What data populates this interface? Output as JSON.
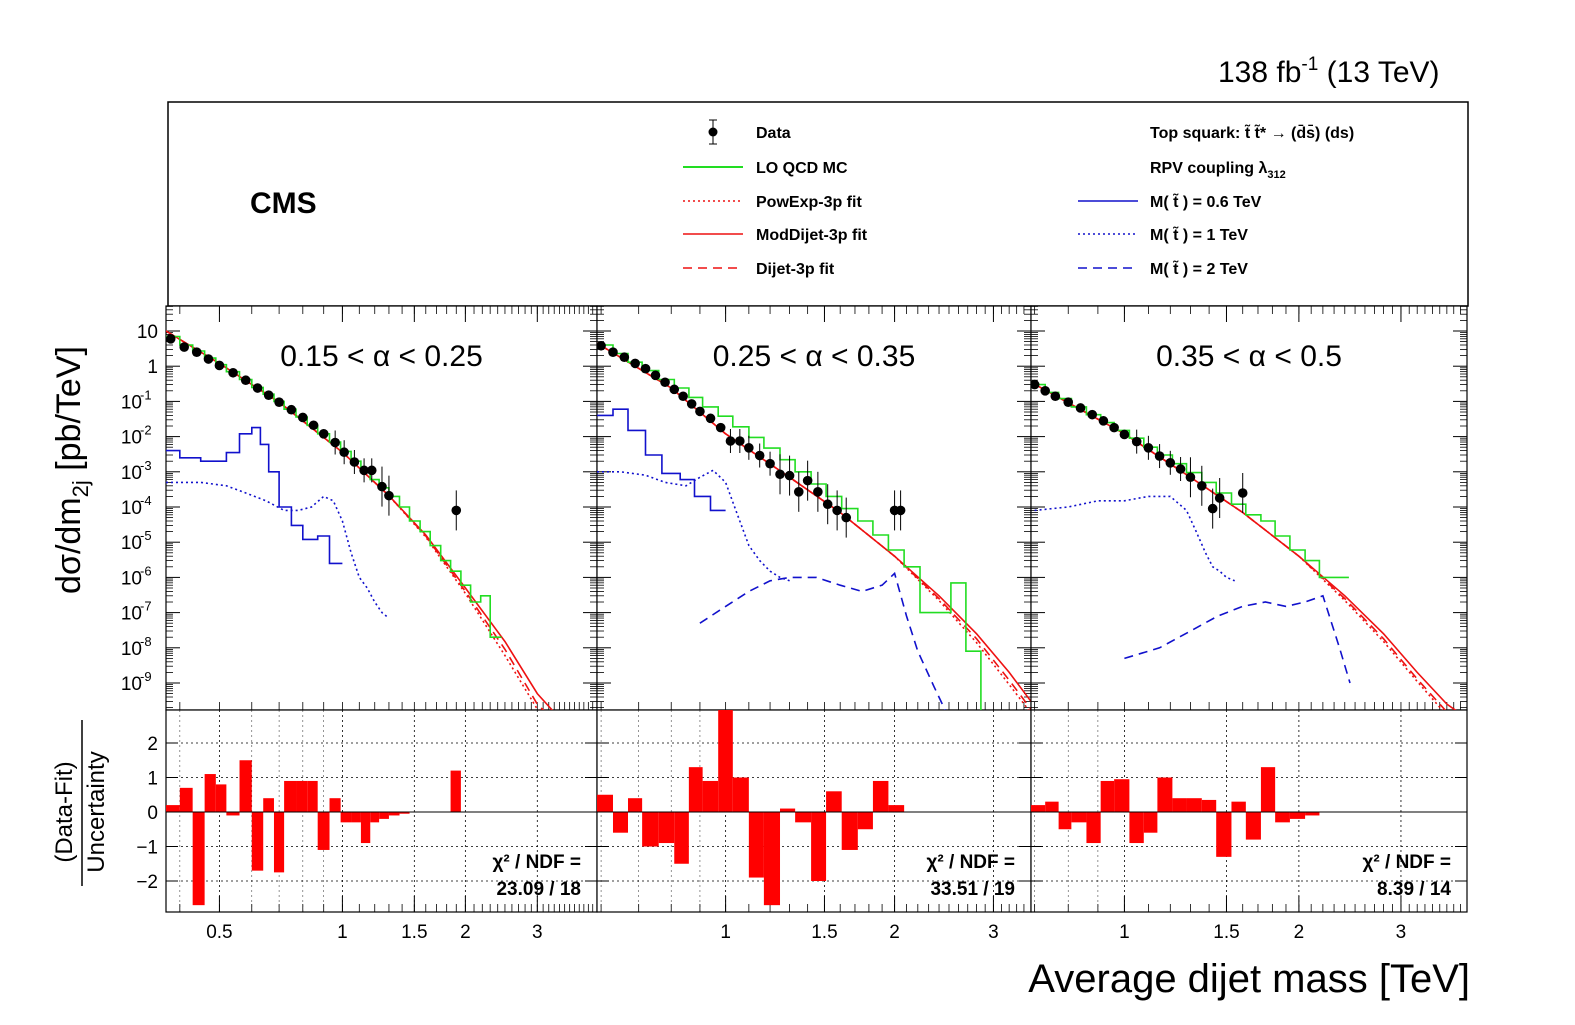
{
  "header": {
    "lumi_text": "138 fb",
    "lumi_sup": "-1",
    "lumi_energy": "(13 TeV)",
    "cms_label": "CMS"
  },
  "legend": {
    "data": "Data",
    "lo_qcd_mc": "LO QCD MC",
    "powexp": "PowExp-3p fit",
    "moddijet": "ModDijet-3p fit",
    "dijet": "Dijet-3p fit",
    "signal_header_1": "Top squark: t̃ t̃* → (d̄s̄) (ds)",
    "signal_header_2": "RPV coupling λ",
    "signal_header_2_sub": "312",
    "sig_06": "M( t̃ ) = 0.6 TeV",
    "sig_1": "M( t̃ ) = 1 TeV",
    "sig_2": "M( t̃ ) = 2 TeV"
  },
  "axes": {
    "y_top_label": "dσ/dm",
    "y_top_label_sub": "2j",
    "y_top_label_unit": " [pb/TeV]",
    "y_bottom_num": "(Data-Fit)",
    "y_bottom_den": "Uncertainty",
    "x_label": "Average dijet mass [TeV]"
  },
  "colors": {
    "data": "#000000",
    "qcd_mc": "#22dd22",
    "fit": "#ee1111",
    "signal": "#1111cc",
    "residual": "#ff0000"
  },
  "chart_data": [
    {
      "type": "line",
      "title": "0.15 < α < 0.25",
      "xlabel": "Average dijet mass [TeV]",
      "ylabel": "dσ/dm2j [pb/TeV]",
      "x_scale": "log",
      "y_scale": "log",
      "xlim": [
        0.37,
        4.2
      ],
      "ylim": [
        1e-10,
        30
      ],
      "x_ticks": [
        0.5,
        1,
        1.5,
        2,
        3
      ],
      "y_ticks": [
        "10",
        "1",
        "10^-1",
        "10^-2",
        "10^-3",
        "10^-4",
        "10^-5",
        "10^-6",
        "10^-7",
        "10^-8",
        "10^-9"
      ],
      "data_points": {
        "x": [
          0.38,
          0.41,
          0.44,
          0.47,
          0.5,
          0.54,
          0.58,
          0.62,
          0.66,
          0.7,
          0.75,
          0.8,
          0.85,
          0.9,
          0.96,
          1.01,
          1.07,
          1.13,
          1.18,
          1.25,
          1.3,
          1.9
        ],
        "y": [
          6,
          3.5,
          2.5,
          1.6,
          1.05,
          0.65,
          0.4,
          0.24,
          0.15,
          0.095,
          0.058,
          0.035,
          0.021,
          0.012,
          0.0068,
          0.0036,
          0.0019,
          0.0011,
          0.0011,
          0.00038,
          0.00021,
          8e-05
        ]
      },
      "fit_moddijet": {
        "x": [
          0.37,
          0.5,
          0.7,
          1.0,
          1.3,
          1.6,
          2.0,
          2.5,
          3.0,
          3.4
        ],
        "y": [
          10,
          1.2,
          0.095,
          0.0036,
          0.00021,
          1.6e-05,
          5e-07,
          1.5e-08,
          5e-10,
          1e-10
        ]
      },
      "fit_dijet": {
        "x": [
          0.37,
          0.5,
          0.7,
          1.0,
          1.3,
          1.6,
          2.0,
          2.5,
          3.0,
          3.25
        ],
        "y": [
          10,
          1.2,
          0.095,
          0.0036,
          0.00021,
          1.5e-05,
          4e-07,
          9e-09,
          2.5e-10,
          1e-10
        ]
      },
      "fit_powexp": {
        "x": [
          0.37,
          0.5,
          0.7,
          1.0,
          1.3,
          1.6,
          2.0,
          2.5,
          3.0,
          3.15
        ],
        "y": [
          10,
          1.2,
          0.095,
          0.0036,
          0.00021,
          1.4e-05,
          3.5e-07,
          6e-09,
          1.8e-10,
          1e-10
        ]
      },
      "qcd_mc": {
        "edges": [
          0.37,
          0.4,
          0.43,
          0.46,
          0.49,
          0.52,
          0.56,
          0.6,
          0.64,
          0.68,
          0.72,
          0.77,
          0.82,
          0.87,
          0.93,
          0.99,
          1.05,
          1.11,
          1.17,
          1.23,
          1.3,
          1.38,
          1.46,
          1.55,
          1.64,
          1.74,
          1.84,
          1.95,
          2.06,
          2.18,
          2.3,
          2.45
        ],
        "values": [
          7,
          4,
          2.7,
          1.7,
          1.1,
          0.7,
          0.42,
          0.25,
          0.16,
          0.1,
          0.06,
          0.036,
          0.021,
          0.012,
          0.007,
          0.0038,
          0.002,
          0.0011,
          0.0006,
          0.00035,
          0.0002,
          0.0001,
          4e-05,
          2e-05,
          8e-06,
          3e-06,
          1.5e-06,
          6e-07,
          2e-07,
          3e-07,
          2e-08
        ]
      },
      "signal_06": {
        "edges": [
          0.37,
          0.4,
          0.45,
          0.52,
          0.56,
          0.6,
          0.63,
          0.66,
          0.7,
          0.75,
          0.8,
          0.87,
          0.93,
          1.0
        ],
        "values": [
          0.004,
          0.0025,
          0.002,
          0.0035,
          0.012,
          0.018,
          0.006,
          0.001,
          0.0001,
          3e-05,
          1.2e-05,
          1.5e-05,
          2.5e-06
        ]
      },
      "signal_1": {
        "x": [
          0.37,
          0.45,
          0.52,
          0.58,
          0.65,
          0.72,
          0.78,
          0.84,
          0.9,
          0.95,
          1.0,
          1.05,
          1.1,
          1.15,
          1.2,
          1.25,
          1.3
        ],
        "y": [
          0.0005,
          0.0005,
          0.0004,
          0.00025,
          0.00015,
          8e-05,
          8e-05,
          0.0001,
          0.0002,
          0.00015,
          4e-05,
          5e-06,
          1e-06,
          5e-07,
          2e-07,
          1e-07,
          7e-08
        ]
      },
      "residuals": {
        "x": [
          0.37,
          0.4,
          0.43,
          0.46,
          0.49,
          0.52,
          0.56,
          0.6,
          0.64,
          0.68,
          0.72,
          0.77,
          0.82,
          0.87,
          0.93,
          0.99,
          1.05,
          1.11,
          1.17,
          1.23,
          1.3,
          1.38,
          1.46,
          1.55,
          1.64,
          1.74,
          1.84,
          1.95
        ],
        "values": [
          0.2,
          0.7,
          -2.7,
          1.1,
          0.8,
          -0.1,
          1.5,
          -1.7,
          0.4,
          -1.75,
          0.9,
          0.9,
          0.9,
          -1.1,
          0.4,
          -0.3,
          -0.3,
          -0.9,
          -0.3,
          -0.2,
          -0.1,
          -0.05,
          0.0,
          0.0,
          0.0,
          0.0,
          1.2,
          0.0
        ]
      },
      "chi2_label": "χ² / NDF =",
      "chi2_value": "23.09 / 18"
    },
    {
      "type": "line",
      "title": "0.25 < α < 0.35",
      "xlabel": "Average dijet mass [TeV]",
      "ylabel": "dσ/dm2j [pb/TeV]",
      "x_scale": "log",
      "y_scale": "log",
      "xlim": [
        0.59,
        3.5
      ],
      "ylim": [
        1e-10,
        30
      ],
      "x_ticks": [
        1,
        1.5,
        2,
        3
      ],
      "data_points": {
        "x": [
          0.6,
          0.63,
          0.66,
          0.69,
          0.72,
          0.75,
          0.78,
          0.81,
          0.84,
          0.87,
          0.9,
          0.94,
          0.98,
          1.02,
          1.06,
          1.1,
          1.15,
          1.2,
          1.25,
          1.3,
          1.35,
          1.4,
          1.46,
          1.52,
          1.58,
          1.64,
          2.0,
          2.05
        ],
        "y": [
          3.8,
          2.5,
          1.8,
          1.2,
          0.85,
          0.55,
          0.35,
          0.22,
          0.14,
          0.085,
          0.052,
          0.033,
          0.018,
          0.0075,
          0.0075,
          0.0048,
          0.0029,
          0.0017,
          0.00085,
          0.00078,
          0.00027,
          0.00056,
          0.00027,
          0.00012,
          8e-05,
          5e-05,
          8e-05,
          8e-05
        ]
      },
      "fit_moddijet": {
        "x": [
          0.59,
          0.8,
          1.0,
          1.3,
          1.6,
          2.0,
          2.4,
          2.8,
          3.2,
          3.5
        ],
        "y": [
          4.5,
          0.24,
          0.012,
          0.0007,
          7e-05,
          4e-06,
          3e-07,
          2.5e-08,
          2e-09,
          3e-10
        ]
      },
      "fit_dijet": {
        "x": [
          0.59,
          0.8,
          1.0,
          1.3,
          1.6,
          2.0,
          2.4,
          2.8,
          3.2,
          3.5
        ],
        "y": [
          4.5,
          0.24,
          0.012,
          0.0007,
          7e-05,
          4e-06,
          2.5e-07,
          1.8e-08,
          1.2e-09,
          1.8e-10
        ]
      },
      "fit_powexp": {
        "x": [
          0.59,
          0.8,
          1.0,
          1.3,
          1.6,
          2.0,
          2.4,
          2.8,
          3.2,
          3.5
        ],
        "y": [
          4.5,
          0.24,
          0.012,
          0.0007,
          7e-05,
          4e-06,
          2.2e-07,
          1.4e-08,
          9e-10,
          1.4e-10
        ]
      },
      "qcd_mc": {
        "edges": [
          0.59,
          0.63,
          0.67,
          0.71,
          0.76,
          0.81,
          0.86,
          0.91,
          0.97,
          1.03,
          1.1,
          1.17,
          1.25,
          1.33,
          1.42,
          1.51,
          1.61,
          1.72,
          1.83,
          1.95,
          2.08,
          2.22,
          2.37,
          2.52,
          2.68,
          2.85,
          3.0
        ],
        "values": [
          4,
          2.3,
          1.3,
          0.75,
          0.42,
          0.24,
          0.13,
          0.07,
          0.038,
          0.019,
          0.0095,
          0.0047,
          0.0022,
          0.001,
          0.00045,
          0.0002,
          9e-05,
          4e-05,
          1.6e-05,
          6e-06,
          2e-06,
          1e-07,
          1e-07,
          7e-07,
          8e-09,
          1e-10
        ]
      },
      "signal_06": {
        "edges": [
          0.59,
          0.63,
          0.67,
          0.72,
          0.77,
          0.83,
          0.88,
          0.94,
          1.0
        ],
        "values": [
          0.04,
          0.06,
          0.015,
          0.003,
          0.0009,
          0.0006,
          0.0002,
          8e-05
        ]
      },
      "signal_1": {
        "x": [
          0.59,
          0.65,
          0.72,
          0.78,
          0.85,
          0.9,
          0.95,
          1.0,
          1.05,
          1.1,
          1.15,
          1.2,
          1.25,
          1.3
        ],
        "y": [
          0.001,
          0.001,
          0.0008,
          0.0005,
          0.0004,
          0.0007,
          0.0011,
          0.0005,
          6e-05,
          8e-06,
          3e-06,
          1.5e-06,
          1e-06,
          8e-07
        ]
      },
      "signal_2": {
        "x": [
          0.9,
          1.0,
          1.1,
          1.2,
          1.3,
          1.45,
          1.6,
          1.75,
          1.9,
          2.0,
          2.1,
          2.2,
          2.35,
          2.5
        ],
        "y": [
          5e-08,
          1.5e-07,
          4e-07,
          8e-07,
          1e-06,
          1e-06,
          6e-07,
          4e-07,
          6e-07,
          1.3e-06,
          8e-08,
          8e-09,
          8e-10,
          1e-10
        ]
      },
      "residuals": {
        "x": [
          0.59,
          0.63,
          0.67,
          0.71,
          0.76,
          0.81,
          0.86,
          0.91,
          0.97,
          1.03,
          1.1,
          1.17,
          1.25,
          1.33,
          1.42,
          1.51,
          1.61,
          1.72,
          1.83,
          1.95,
          2.08,
          2.22
        ],
        "values": [
          0.5,
          -0.6,
          0.4,
          -1.0,
          -0.9,
          -1.5,
          1.3,
          0.9,
          3.0,
          1.0,
          -1.9,
          -2.7,
          0.1,
          -0.3,
          -2.0,
          0.6,
          -1.1,
          -0.5,
          0.9,
          0.2,
          0.0,
          0.0
        ]
      },
      "chi2_label": "χ² / NDF =",
      "chi2_value": "33.51 / 19"
    },
    {
      "type": "line",
      "title": "0.35 < α < 0.5",
      "xlabel": "Average dijet mass [TeV]",
      "ylabel": "dσ/dm2j [pb/TeV]",
      "x_scale": "log",
      "y_scale": "log",
      "xlim": [
        0.69,
        3.9
      ],
      "ylim": [
        1e-10,
        30
      ],
      "x_ticks": [
        1,
        1.5,
        2,
        3
      ],
      "data_points": {
        "x": [
          0.7,
          0.73,
          0.76,
          0.8,
          0.84,
          0.88,
          0.92,
          0.96,
          1.0,
          1.05,
          1.1,
          1.15,
          1.2,
          1.25,
          1.3,
          1.36,
          1.42,
          1.46,
          1.6
        ],
        "y": [
          0.3,
          0.2,
          0.14,
          0.095,
          0.065,
          0.042,
          0.028,
          0.018,
          0.0115,
          0.0072,
          0.0048,
          0.0028,
          0.0018,
          0.0012,
          0.0007,
          0.0004,
          9e-05,
          0.00018,
          0.00025
        ]
      },
      "fit_moddijet": {
        "x": [
          0.69,
          1.0,
          1.3,
          1.6,
          2.0,
          2.4,
          2.8,
          3.2,
          3.6,
          3.9
        ],
        "y": [
          0.35,
          0.012,
          0.0007,
          7e-05,
          4e-06,
          3e-07,
          2.5e-08,
          2e-09,
          2.5e-10,
          1e-10
        ]
      },
      "fit_dijet": {
        "x": [
          0.69,
          1.0,
          1.3,
          1.6,
          2.0,
          2.4,
          2.8,
          3.2,
          3.6,
          3.8
        ],
        "y": [
          0.35,
          0.012,
          0.0007,
          7e-05,
          4e-06,
          2.5e-07,
          1.8e-08,
          1.3e-09,
          1.5e-10,
          1e-10
        ]
      },
      "fit_powexp": {
        "x": [
          0.69,
          1.0,
          1.3,
          1.6,
          2.0,
          2.4,
          2.8,
          3.2,
          3.6,
          3.75
        ],
        "y": [
          0.35,
          0.012,
          0.0007,
          7e-05,
          4e-06,
          2.2e-07,
          1.5e-08,
          1.1e-09,
          1.2e-10,
          1e-10
        ]
      },
      "qcd_mc": {
        "edges": [
          0.69,
          0.73,
          0.77,
          0.81,
          0.86,
          0.91,
          0.96,
          1.02,
          1.08,
          1.14,
          1.21,
          1.28,
          1.36,
          1.44,
          1.53,
          1.62,
          1.72,
          1.82,
          1.93,
          2.05,
          2.17,
          2.3,
          2.44
        ],
        "values": [
          0.3,
          0.18,
          0.12,
          0.07,
          0.042,
          0.025,
          0.015,
          0.009,
          0.005,
          0.003,
          0.0017,
          0.00095,
          0.0005,
          0.00025,
          0.00012,
          6e-05,
          4e-05,
          1.5e-05,
          6e-06,
          3e-06,
          1e-06,
          1e-06
        ]
      },
      "signal_1": {
        "x": [
          0.7,
          0.8,
          0.9,
          1.0,
          1.1,
          1.2,
          1.28,
          1.33,
          1.38,
          1.42,
          1.46,
          1.5,
          1.55
        ],
        "y": [
          8e-05,
          0.0001,
          0.00015,
          0.00015,
          0.0002,
          0.0002,
          8e-05,
          2e-05,
          5e-06,
          2e-06,
          1.5e-06,
          1e-06,
          8e-07
        ]
      },
      "signal_2": {
        "x": [
          1.0,
          1.15,
          1.3,
          1.45,
          1.6,
          1.75,
          1.9,
          2.05,
          2.2,
          2.35,
          2.45
        ],
        "y": [
          5e-09,
          1e-08,
          3e-08,
          8e-08,
          1.5e-07,
          2e-07,
          1.5e-07,
          2e-07,
          3e-07,
          1e-08,
          1e-09
        ]
      },
      "residuals": {
        "x": [
          0.69,
          0.73,
          0.77,
          0.81,
          0.86,
          0.91,
          0.96,
          1.02,
          1.08,
          1.14,
          1.21,
          1.28,
          1.36,
          1.44,
          1.53,
          1.62,
          1.72,
          1.82,
          1.93,
          2.05,
          2.17
        ],
        "values": [
          0.2,
          0.3,
          -0.5,
          -0.3,
          -0.9,
          0.9,
          0.95,
          -0.9,
          -0.6,
          1.0,
          0.4,
          0.4,
          0.35,
          -1.3,
          0.3,
          -0.8,
          1.3,
          -0.3,
          -0.2,
          -0.1,
          0.0
        ]
      },
      "chi2_label": "χ² / NDF =",
      "chi2_value": "8.39 / 14"
    }
  ],
  "tick_labels": {
    "y_top": [
      "10",
      "1",
      "10",
      "10",
      "10",
      "10",
      "10",
      "10",
      "10",
      "10",
      "10"
    ],
    "y_top_exp": [
      "",
      "",
      "-1",
      "-2",
      "-3",
      "-4",
      "-5",
      "-6",
      "-7",
      "-8",
      "-9"
    ],
    "y_bottom": [
      "2",
      "1",
      "0",
      "−1",
      "−2"
    ],
    "x_p1": [
      "0.5",
      "1",
      "1.5",
      "2",
      "3"
    ],
    "x_p2": [
      "1",
      "1.5",
      "2",
      "3"
    ],
    "x_p3": [
      "1",
      "1.5",
      "2",
      "3"
    ]
  }
}
